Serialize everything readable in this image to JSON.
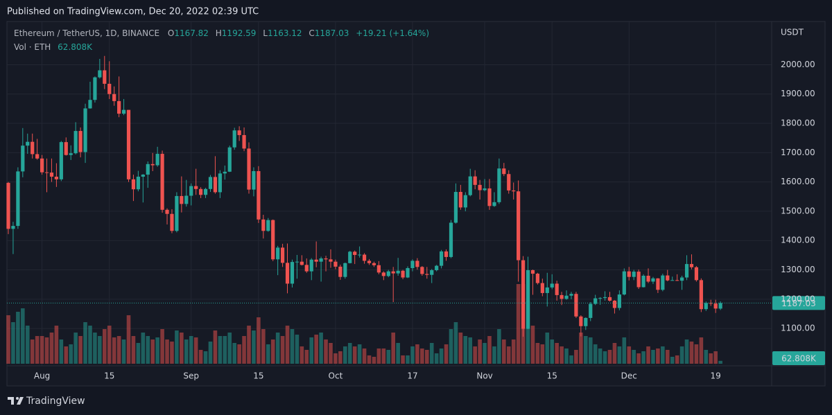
{
  "chart_data": {
    "type": "candlestick",
    "published": "Published on TradingView.com, Dec 20, 2022 02:39 UTC",
    "symbol": "Ethereum / TetherUS, 1D, BINANCE",
    "ohlc_labels": [
      "O",
      "H",
      "L",
      "C"
    ],
    "change": "+19.21 (+1.64%)",
    "axis_label": "USDT",
    "brand": "TradingView",
    "up_color": "#26a69a",
    "down_color": "#ef5350",
    "grid": true,
    "ylim": [
      975,
      2150
    ],
    "yticks": [
      {
        "value": 1100,
        "label": "1100.00"
      },
      {
        "value": 1200,
        "label": "1200.00"
      },
      {
        "value": 1300,
        "label": "1300.00"
      },
      {
        "value": 1400,
        "label": "1400.00"
      },
      {
        "value": 1500,
        "label": "1500.00"
      },
      {
        "value": 1600,
        "label": "1600.00"
      },
      {
        "value": 1700,
        "label": "1700.00"
      },
      {
        "value": 1800,
        "label": "1800.00"
      },
      {
        "value": 1900,
        "label": "1900.00"
      },
      {
        "value": 2000,
        "label": "2000.00"
      }
    ],
    "xticks": [
      {
        "value": 7,
        "label": "Aug"
      },
      {
        "value": 21,
        "label": "15"
      },
      {
        "value": 38,
        "label": "Sep"
      },
      {
        "value": 52,
        "label": "15"
      },
      {
        "value": 68,
        "label": "Oct"
      },
      {
        "value": 84,
        "label": "17"
      },
      {
        "value": 99,
        "label": "Nov"
      },
      {
        "value": 113,
        "label": "15"
      },
      {
        "value": 129,
        "label": "Dec"
      },
      {
        "value": 147,
        "label": "19"
      }
    ],
    "ohlc": [
      [
        1597,
        1600,
        1422,
        1440
      ],
      [
        1440,
        1464,
        1354,
        1450
      ],
      [
        1450,
        1650,
        1440,
        1636
      ],
      [
        1636,
        1784,
        1616,
        1724
      ],
      [
        1724,
        1765,
        1696,
        1737
      ],
      [
        1737,
        1765,
        1680,
        1695
      ],
      [
        1695,
        1747,
        1676,
        1680
      ],
      [
        1680,
        1692,
        1625,
        1633
      ],
      [
        1633,
        1680,
        1565,
        1632
      ],
      [
        1632,
        1680,
        1600,
        1618
      ],
      [
        1618,
        1664,
        1583,
        1609
      ],
      [
        1609,
        1740,
        1603,
        1736
      ],
      [
        1736,
        1752,
        1690,
        1692
      ],
      [
        1692,
        1725,
        1675,
        1698
      ],
      [
        1698,
        1804,
        1694,
        1774
      ],
      [
        1774,
        1786,
        1684,
        1702
      ],
      [
        1702,
        1867,
        1665,
        1851
      ],
      [
        1851,
        1942,
        1850,
        1880
      ],
      [
        1880,
        1960,
        1871,
        1957
      ],
      [
        1957,
        2020,
        1953,
        1981
      ],
      [
        1981,
        2030,
        1917,
        1935
      ],
      [
        1935,
        2012,
        1883,
        1900
      ],
      [
        1900,
        1926,
        1860,
        1876
      ],
      [
        1876,
        1960,
        1821,
        1833
      ],
      [
        1833,
        1883,
        1828,
        1846
      ],
      [
        1846,
        1846,
        1600,
        1609
      ],
      [
        1609,
        1625,
        1535,
        1575
      ],
      [
        1575,
        1638,
        1568,
        1618
      ],
      [
        1618,
        1627,
        1530,
        1625
      ],
      [
        1625,
        1670,
        1580,
        1661
      ],
      [
        1661,
        1699,
        1637,
        1657
      ],
      [
        1657,
        1720,
        1652,
        1696
      ],
      [
        1696,
        1707,
        1495,
        1505
      ],
      [
        1505,
        1510,
        1455,
        1491
      ],
      [
        1491,
        1507,
        1425,
        1433
      ],
      [
        1433,
        1565,
        1428,
        1552
      ],
      [
        1552,
        1619,
        1496,
        1525
      ],
      [
        1525,
        1607,
        1516,
        1553
      ],
      [
        1553,
        1595,
        1520,
        1586
      ],
      [
        1586,
        1645,
        1556,
        1576
      ],
      [
        1576,
        1582,
        1545,
        1556
      ],
      [
        1556,
        1580,
        1545,
        1576
      ],
      [
        1576,
        1624,
        1566,
        1617
      ],
      [
        1617,
        1688,
        1560,
        1565
      ],
      [
        1565,
        1640,
        1545,
        1629
      ],
      [
        1629,
        1656,
        1608,
        1635
      ],
      [
        1635,
        1724,
        1634,
        1718
      ],
      [
        1718,
        1785,
        1710,
        1776
      ],
      [
        1776,
        1790,
        1740,
        1760
      ],
      [
        1760,
        1786,
        1705,
        1714
      ],
      [
        1714,
        1735,
        1560,
        1574
      ],
      [
        1574,
        1650,
        1551,
        1637
      ],
      [
        1637,
        1654,
        1460,
        1472
      ],
      [
        1472,
        1488,
        1407,
        1433
      ],
      [
        1433,
        1477,
        1430,
        1470
      ],
      [
        1470,
        1472,
        1330,
        1336
      ],
      [
        1336,
        1382,
        1282,
        1376
      ],
      [
        1376,
        1389,
        1310,
        1324
      ],
      [
        1324,
        1390,
        1220,
        1253
      ],
      [
        1253,
        1335,
        1240,
        1327
      ],
      [
        1327,
        1351,
        1270,
        1328
      ],
      [
        1328,
        1350,
        1315,
        1317
      ],
      [
        1317,
        1339,
        1290,
        1295
      ],
      [
        1295,
        1340,
        1265,
        1335
      ],
      [
        1335,
        1397,
        1309,
        1328
      ],
      [
        1328,
        1345,
        1260,
        1339
      ],
      [
        1339,
        1348,
        1295,
        1336
      ],
      [
        1336,
        1370,
        1307,
        1328
      ],
      [
        1328,
        1335,
        1302,
        1311
      ],
      [
        1311,
        1318,
        1266,
        1276
      ],
      [
        1276,
        1325,
        1270,
        1323
      ],
      [
        1323,
        1365,
        1322,
        1362
      ],
      [
        1362,
        1366,
        1320,
        1351
      ],
      [
        1351,
        1380,
        1342,
        1352
      ],
      [
        1352,
        1357,
        1321,
        1331
      ],
      [
        1331,
        1337,
        1317,
        1323
      ],
      [
        1323,
        1328,
        1310,
        1316
      ],
      [
        1316,
        1330,
        1285,
        1291
      ],
      [
        1291,
        1295,
        1265,
        1279
      ],
      [
        1279,
        1300,
        1275,
        1295
      ],
      [
        1295,
        1310,
        1190,
        1288
      ],
      [
        1288,
        1341,
        1280,
        1297
      ],
      [
        1297,
        1300,
        1268,
        1274
      ],
      [
        1274,
        1312,
        1272,
        1306
      ],
      [
        1306,
        1336,
        1295,
        1331
      ],
      [
        1331,
        1340,
        1301,
        1310
      ],
      [
        1310,
        1313,
        1280,
        1286
      ],
      [
        1286,
        1310,
        1270,
        1283
      ],
      [
        1283,
        1303,
        1255,
        1299
      ],
      [
        1299,
        1317,
        1295,
        1314
      ],
      [
        1314,
        1368,
        1305,
        1363
      ],
      [
        1363,
        1370,
        1331,
        1344
      ],
      [
        1344,
        1470,
        1340,
        1461
      ],
      [
        1461,
        1595,
        1458,
        1566
      ],
      [
        1566,
        1590,
        1505,
        1513
      ],
      [
        1513,
        1565,
        1500,
        1555
      ],
      [
        1555,
        1645,
        1551,
        1619
      ],
      [
        1619,
        1640,
        1575,
        1590
      ],
      [
        1590,
        1607,
        1540,
        1572
      ],
      [
        1572,
        1610,
        1568,
        1578
      ],
      [
        1578,
        1610,
        1505,
        1518
      ],
      [
        1518,
        1565,
        1515,
        1531
      ],
      [
        1531,
        1680,
        1525,
        1646
      ],
      [
        1646,
        1665,
        1620,
        1627
      ],
      [
        1627,
        1640,
        1560,
        1571
      ],
      [
        1571,
        1598,
        1540,
        1568
      ],
      [
        1568,
        1605,
        1260,
        1333
      ],
      [
        1333,
        1347,
        1072,
        1099
      ],
      [
        1099,
        1345,
        1098,
        1299
      ],
      [
        1299,
        1301,
        1215,
        1287
      ],
      [
        1287,
        1290,
        1250,
        1255
      ],
      [
        1255,
        1270,
        1210,
        1221
      ],
      [
        1221,
        1290,
        1175,
        1240
      ],
      [
        1240,
        1285,
        1234,
        1253
      ],
      [
        1253,
        1263,
        1195,
        1214
      ],
      [
        1214,
        1225,
        1180,
        1201
      ],
      [
        1201,
        1230,
        1198,
        1212
      ],
      [
        1212,
        1225,
        1200,
        1218
      ],
      [
        1218,
        1225,
        1136,
        1141
      ],
      [
        1141,
        1145,
        1073,
        1108
      ],
      [
        1108,
        1138,
        1095,
        1136
      ],
      [
        1136,
        1190,
        1125,
        1184
      ],
      [
        1184,
        1215,
        1180,
        1203
      ],
      [
        1203,
        1207,
        1181,
        1204
      ],
      [
        1204,
        1227,
        1195,
        1207
      ],
      [
        1207,
        1225,
        1192,
        1195
      ],
      [
        1195,
        1197,
        1151,
        1170
      ],
      [
        1170,
        1230,
        1162,
        1216
      ],
      [
        1216,
        1305,
        1213,
        1295
      ],
      [
        1295,
        1310,
        1264,
        1276
      ],
      [
        1276,
        1300,
        1265,
        1294
      ],
      [
        1294,
        1301,
        1235,
        1241
      ],
      [
        1241,
        1285,
        1240,
        1280
      ],
      [
        1280,
        1305,
        1255,
        1260
      ],
      [
        1260,
        1276,
        1252,
        1271
      ],
      [
        1271,
        1272,
        1221,
        1232
      ],
      [
        1232,
        1287,
        1227,
        1281
      ],
      [
        1281,
        1300,
        1261,
        1264
      ],
      [
        1264,
        1277,
        1263,
        1265
      ],
      [
        1265,
        1285,
        1262,
        1263
      ],
      [
        1263,
        1280,
        1232,
        1274
      ],
      [
        1274,
        1350,
        1265,
        1320
      ],
      [
        1320,
        1353,
        1302,
        1309
      ],
      [
        1309,
        1313,
        1260,
        1265
      ],
      [
        1265,
        1271,
        1156,
        1166
      ],
      [
        1166,
        1192,
        1160,
        1187
      ],
      [
        1187,
        1198,
        1177,
        1185
      ],
      [
        1185,
        1198,
        1153,
        1168
      ],
      [
        1167.82,
        1192.59,
        1163.12,
        1187.03
      ]
    ],
    "volume": {
      "name": "Vol · ETH",
      "last_label": "62.808K",
      "values": [
        1050000,
        900000,
        1125000,
        1200000,
        825000,
        525000,
        600000,
        600000,
        570000,
        675000,
        825000,
        525000,
        375000,
        420000,
        675000,
        600000,
        900000,
        825000,
        675000,
        600000,
        750000,
        825000,
        570000,
        600000,
        525000,
        1050000,
        600000,
        450000,
        675000,
        600000,
        525000,
        570000,
        750000,
        525000,
        480000,
        720000,
        675000,
        525000,
        600000,
        570000,
        300000,
        270000,
        480000,
        720000,
        600000,
        600000,
        675000,
        450000,
        420000,
        600000,
        825000,
        720000,
        1005000,
        750000,
        420000,
        525000,
        675000,
        600000,
        825000,
        750000,
        630000,
        375000,
        300000,
        570000,
        630000,
        675000,
        525000,
        450000,
        225000,
        270000,
        375000,
        450000,
        375000,
        420000,
        330000,
        180000,
        150000,
        330000,
        330000,
        300000,
        675000,
        450000,
        180000,
        180000,
        375000,
        420000,
        330000,
        300000,
        450000,
        225000,
        330000,
        420000,
        750000,
        900000,
        675000,
        600000,
        570000,
        375000,
        525000,
        450000,
        600000,
        375000,
        750000,
        525000,
        375000,
        525000,
        1725000,
        1725000,
        1350000,
        825000,
        450000,
        420000,
        675000,
        525000,
        450000,
        375000,
        330000,
        180000,
        300000,
        675000,
        600000,
        570000,
        420000,
        330000,
        270000,
        300000,
        450000,
        375000,
        570000,
        375000,
        300000,
        225000,
        270000,
        375000,
        300000,
        330000,
        375000,
        300000,
        150000,
        180000,
        375000,
        525000,
        480000,
        420000,
        570000,
        300000,
        225000,
        270000,
        62808
      ]
    }
  }
}
